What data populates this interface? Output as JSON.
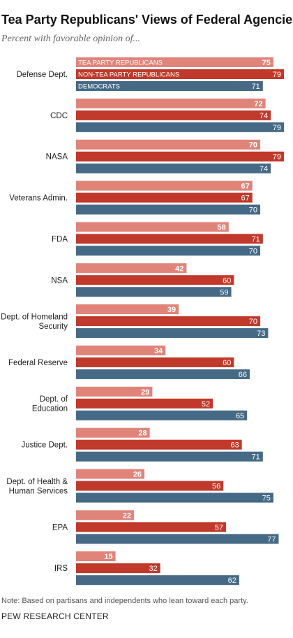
{
  "title": "Tea Party Republicans' Views of Federal Agencies",
  "subtitle": "Percent with favorable opinion of...",
  "note": "Note: Based on partisans and independents who lean toward each party.",
  "source": "PEW RESEARCH CENTER",
  "colors": {
    "tea_party": "#e0847a",
    "non_tea_party": "#c0392b",
    "democrats": "#466a86"
  },
  "chart_data": {
    "type": "bar",
    "orientation": "horizontal",
    "categories": [
      [
        "Defense Dept."
      ],
      [
        "CDC"
      ],
      [
        "NASA"
      ],
      [
        "Veterans Admin."
      ],
      [
        "FDA"
      ],
      [
        "NSA"
      ],
      [
        "Dept. of Homeland",
        "Security"
      ],
      [
        "Federal Reserve"
      ],
      [
        "Dept. of",
        "Education"
      ],
      [
        "Justice Dept."
      ],
      [
        "Dept. of Health &",
        "Human Services"
      ],
      [
        "EPA"
      ],
      [
        "IRS"
      ]
    ],
    "series": [
      {
        "name": "TEA PARTY REPUBLICANS",
        "color": "#e0847a",
        "values": [
          75,
          72,
          70,
          67,
          58,
          42,
          39,
          34,
          29,
          28,
          26,
          22,
          15
        ]
      },
      {
        "name": "NON-TEA PARTY REPUBLICANS",
        "color": "#c0392b",
        "values": [
          79,
          74,
          79,
          67,
          71,
          60,
          70,
          60,
          52,
          63,
          56,
          57,
          32
        ]
      },
      {
        "name": "DEMOCRATS",
        "color": "#466a86",
        "values": [
          71,
          79,
          74,
          70,
          70,
          59,
          73,
          66,
          65,
          71,
          75,
          77,
          62
        ]
      }
    ],
    "xlim": [
      0,
      79
    ],
    "grid": false,
    "legend": "inside-first-group"
  }
}
